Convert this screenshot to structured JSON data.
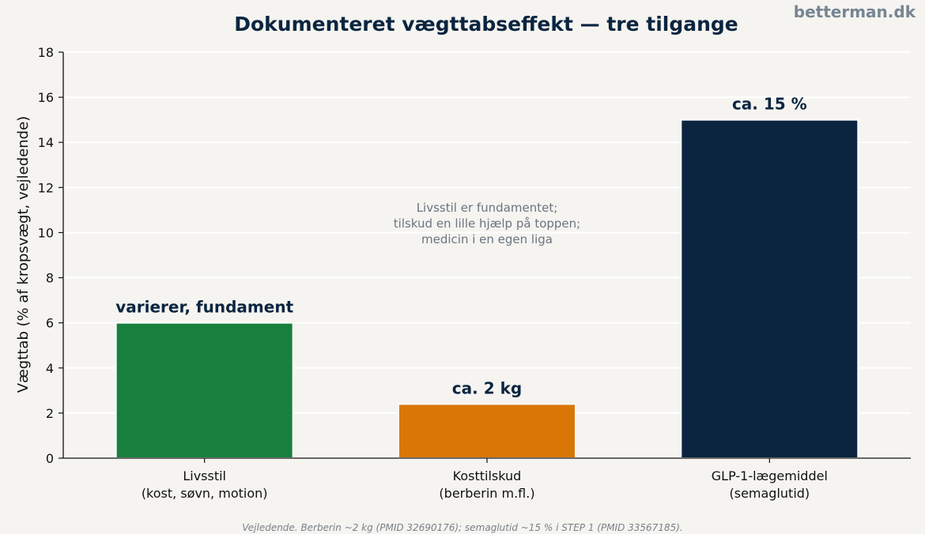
{
  "brand": "betterman.dk",
  "footnote": "Vejledende. Berberin ~2 kg (PMID 32690176); semaglutid ~15 % i STEP 1 (PMID 33567185).",
  "chart_data": {
    "type": "bar",
    "title": "Dokumenteret vægttabseffekt — tre tilgange",
    "xlabel": "",
    "ylabel": "Vægttab (% af kropsvægt, vejledende)",
    "ylim": [
      0,
      18
    ],
    "yticks": [
      0,
      2,
      4,
      6,
      8,
      10,
      12,
      14,
      16,
      18
    ],
    "grid": true,
    "categories": [
      [
        "Livsstil",
        "(kost, søvn, motion)"
      ],
      [
        "Kosttilskud",
        "(berberin m.fl.)"
      ],
      [
        "GLP-1-lægemiddel",
        "(semaglutid)"
      ]
    ],
    "values": [
      6,
      2.4,
      15
    ],
    "data_labels": [
      "varierer, fundament",
      "ca. 2 kg",
      "ca. 15 %"
    ],
    "colors": [
      "#18803e",
      "#d97706",
      "#0b2540"
    ],
    "annotation": [
      "Livsstil er fundamentet;",
      "tilskud en lille hjælp på toppen;",
      "medicin i en egen liga"
    ]
  }
}
